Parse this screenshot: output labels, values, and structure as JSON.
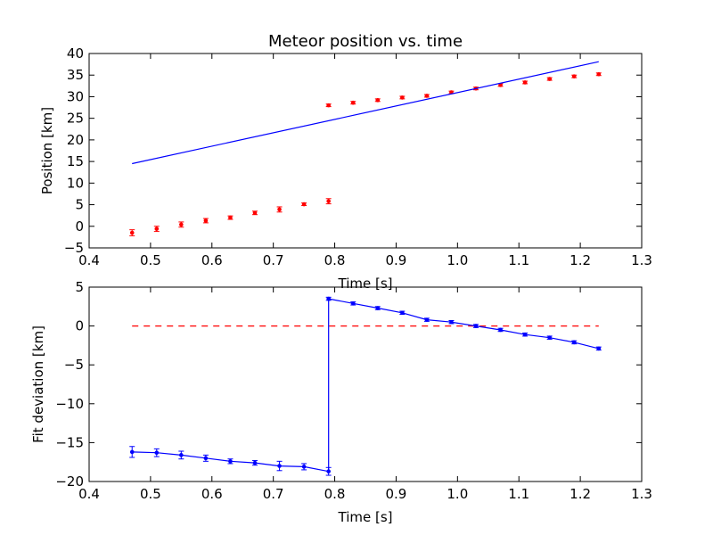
{
  "chart_data": [
    {
      "type": "scatter",
      "title": "Meteor position vs. time",
      "xlabel": "Time [s]",
      "ylabel": "Position [km]",
      "xlim": [
        0.4,
        1.3
      ],
      "ylim": [
        -5,
        40
      ],
      "xticks": [
        "0.4",
        "0.5",
        "0.6",
        "0.7",
        "0.8",
        "0.9",
        "1.0",
        "1.1",
        "1.2",
        "1.3"
      ],
      "yticks": [
        "−5",
        "0",
        "5",
        "10",
        "15",
        "20",
        "25",
        "30",
        "35",
        "40"
      ],
      "grid": false,
      "series": [
        {
          "style": "points-with-errorbars",
          "color": "#ff0000",
          "points": [
            {
              "x": 0.47,
              "y": -1.5,
              "err": 0.7
            },
            {
              "x": 0.51,
              "y": -0.6,
              "err": 0.6
            },
            {
              "x": 0.55,
              "y": 0.4,
              "err": 0.6
            },
            {
              "x": 0.59,
              "y": 1.3,
              "err": 0.5
            },
            {
              "x": 0.63,
              "y": 2.0,
              "err": 0.4
            },
            {
              "x": 0.67,
              "y": 3.1,
              "err": 0.4
            },
            {
              "x": 0.71,
              "y": 3.9,
              "err": 0.6
            },
            {
              "x": 0.75,
              "y": 5.1,
              "err": 0.3
            },
            {
              "x": 0.79,
              "y": 5.8,
              "err": 0.6
            },
            {
              "x": 0.79,
              "y": 28.0,
              "err": 0.3
            },
            {
              "x": 0.83,
              "y": 28.6,
              "err": 0.3
            },
            {
              "x": 0.87,
              "y": 29.2,
              "err": 0.3
            },
            {
              "x": 0.91,
              "y": 29.8,
              "err": 0.3
            },
            {
              "x": 0.95,
              "y": 30.2,
              "err": 0.3
            },
            {
              "x": 0.99,
              "y": 31.0,
              "err": 0.3
            },
            {
              "x": 1.03,
              "y": 31.9,
              "err": 0.3
            },
            {
              "x": 1.07,
              "y": 32.7,
              "err": 0.3
            },
            {
              "x": 1.11,
              "y": 33.3,
              "err": 0.3
            },
            {
              "x": 1.15,
              "y": 34.1,
              "err": 0.3
            },
            {
              "x": 1.19,
              "y": 34.7,
              "err": 0.3
            },
            {
              "x": 1.23,
              "y": 35.2,
              "err": 0.3
            }
          ]
        },
        {
          "style": "line",
          "color": "#0000ff",
          "points": [
            {
              "x": 0.47,
              "y": 14.5
            },
            {
              "x": 1.23,
              "y": 38.1
            }
          ]
        }
      ]
    },
    {
      "type": "line",
      "xlabel": "Time [s]",
      "ylabel": "Fit deviation [km]",
      "xlim": [
        0.4,
        1.3
      ],
      "ylim": [
        -20,
        5
      ],
      "xticks": [
        "0.4",
        "0.5",
        "0.6",
        "0.7",
        "0.8",
        "0.9",
        "1.0",
        "1.1",
        "1.2",
        "1.3"
      ],
      "yticks": [
        "−20",
        "−15",
        "−10",
        "−5",
        "0",
        "5"
      ],
      "grid": false,
      "reference_line": {
        "y": 0,
        "color": "#ff0000",
        "style": "dashed",
        "x_from": 0.47,
        "x_to": 1.23
      },
      "series": [
        {
          "style": "line-with-errorbars",
          "color": "#0000ff",
          "points": [
            {
              "x": 0.47,
              "y": -16.2,
              "err": 0.7
            },
            {
              "x": 0.51,
              "y": -16.3,
              "err": 0.5
            },
            {
              "x": 0.55,
              "y": -16.6,
              "err": 0.5
            },
            {
              "x": 0.59,
              "y": -17.0,
              "err": 0.4
            },
            {
              "x": 0.63,
              "y": -17.4,
              "err": 0.3
            },
            {
              "x": 0.67,
              "y": -17.6,
              "err": 0.3
            },
            {
              "x": 0.71,
              "y": -18.0,
              "err": 0.6
            },
            {
              "x": 0.75,
              "y": -18.1,
              "err": 0.4
            },
            {
              "x": 0.79,
              "y": -18.7,
              "err": 0.5
            },
            {
              "x": 0.79,
              "y": 3.5,
              "err": 0.2
            },
            {
              "x": 0.83,
              "y": 2.9,
              "err": 0.2
            },
            {
              "x": 0.87,
              "y": 2.3,
              "err": 0.2
            },
            {
              "x": 0.91,
              "y": 1.7,
              "err": 0.2
            },
            {
              "x": 0.95,
              "y": 0.8,
              "err": 0.2
            },
            {
              "x": 0.99,
              "y": 0.5,
              "err": 0.2
            },
            {
              "x": 1.03,
              "y": 0.0,
              "err": 0.2
            },
            {
              "x": 1.07,
              "y": -0.5,
              "err": 0.2
            },
            {
              "x": 1.11,
              "y": -1.1,
              "err": 0.2
            },
            {
              "x": 1.15,
              "y": -1.5,
              "err": 0.2
            },
            {
              "x": 1.19,
              "y": -2.1,
              "err": 0.2
            },
            {
              "x": 1.23,
              "y": -2.9,
              "err": 0.2
            }
          ]
        }
      ]
    }
  ]
}
